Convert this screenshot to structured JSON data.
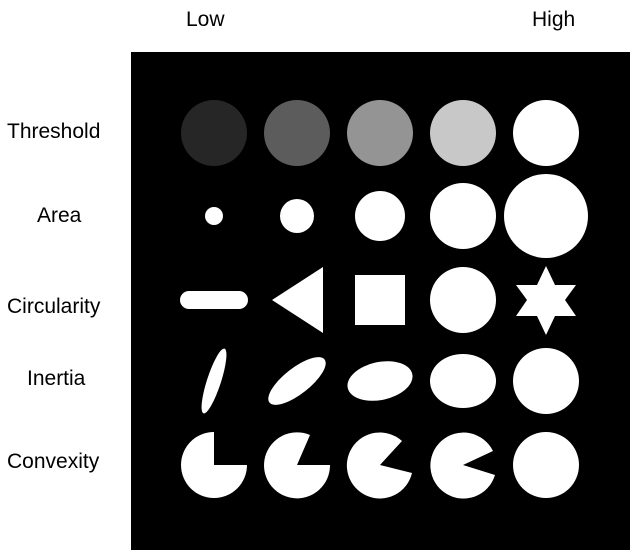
{
  "columns": {
    "low": "Low",
    "high": "High"
  },
  "rows": [
    {
      "label": "Threshold"
    },
    {
      "label": "Area"
    },
    {
      "label": "Circularity"
    },
    {
      "label": "Inertia"
    },
    {
      "label": "Convexity"
    }
  ],
  "colors": {
    "background": "#000000",
    "shape": "#ffffff",
    "threshold_levels": [
      "#262626",
      "#5c5c5c",
      "#949494",
      "#c8c8c8",
      "#ffffff"
    ]
  }
}
